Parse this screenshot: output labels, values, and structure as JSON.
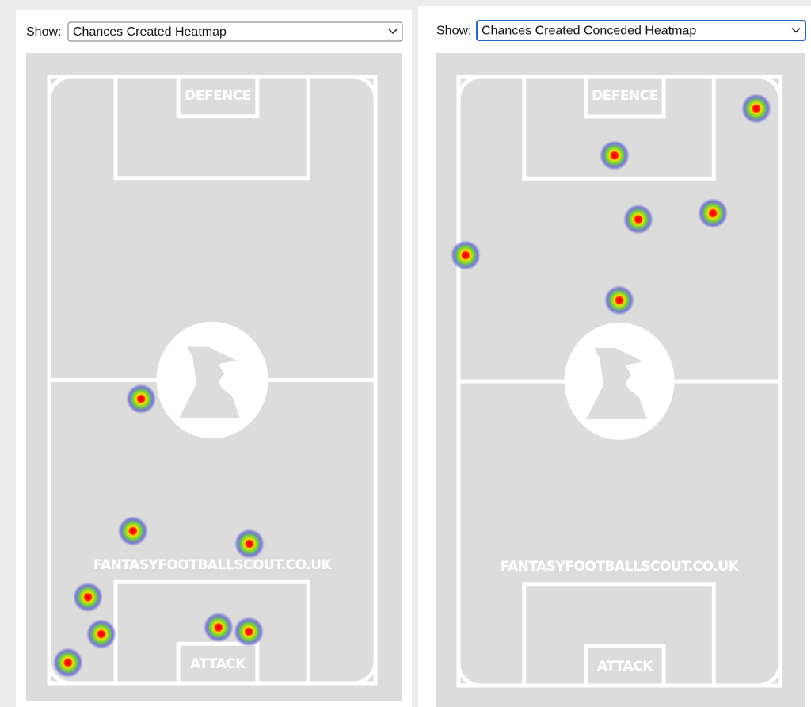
{
  "panels": [
    {
      "show_label": "Show:",
      "selected": "Chances Created Heatmap",
      "pitch": {
        "top_label": "DEFENCE",
        "bottom_label": "ATTACK",
        "watermark": "FANTASYFOOTBALLSCOUT.CO.UK"
      },
      "points": [
        {
          "x": 28.2,
          "y": 53.1
        },
        {
          "x": 25.7,
          "y": 74.9
        },
        {
          "x": 61.4,
          "y": 77.0
        },
        {
          "x": 11.9,
          "y": 85.8
        },
        {
          "x": 16.0,
          "y": 91.9
        },
        {
          "x": 51.9,
          "y": 90.8
        },
        {
          "x": 61.2,
          "y": 91.5
        },
        {
          "x": 5.8,
          "y": 96.6
        }
      ]
    },
    {
      "show_label": "Show:",
      "selected": "Chances Created Conceded Heatmap",
      "pitch": {
        "top_label": "DEFENCE",
        "bottom_label": "ATTACK",
        "watermark": "FANTASYFOOTBALLSCOUT.CO.UK"
      },
      "points": [
        {
          "x": 92.6,
          "y": 5.2
        },
        {
          "x": 48.5,
          "y": 12.9
        },
        {
          "x": 55.9,
          "y": 23.4
        },
        {
          "x": 79.1,
          "y": 22.4
        },
        {
          "x": 2.2,
          "y": 29.3
        },
        {
          "x": 50.0,
          "y": 36.7
        }
      ]
    }
  ]
}
